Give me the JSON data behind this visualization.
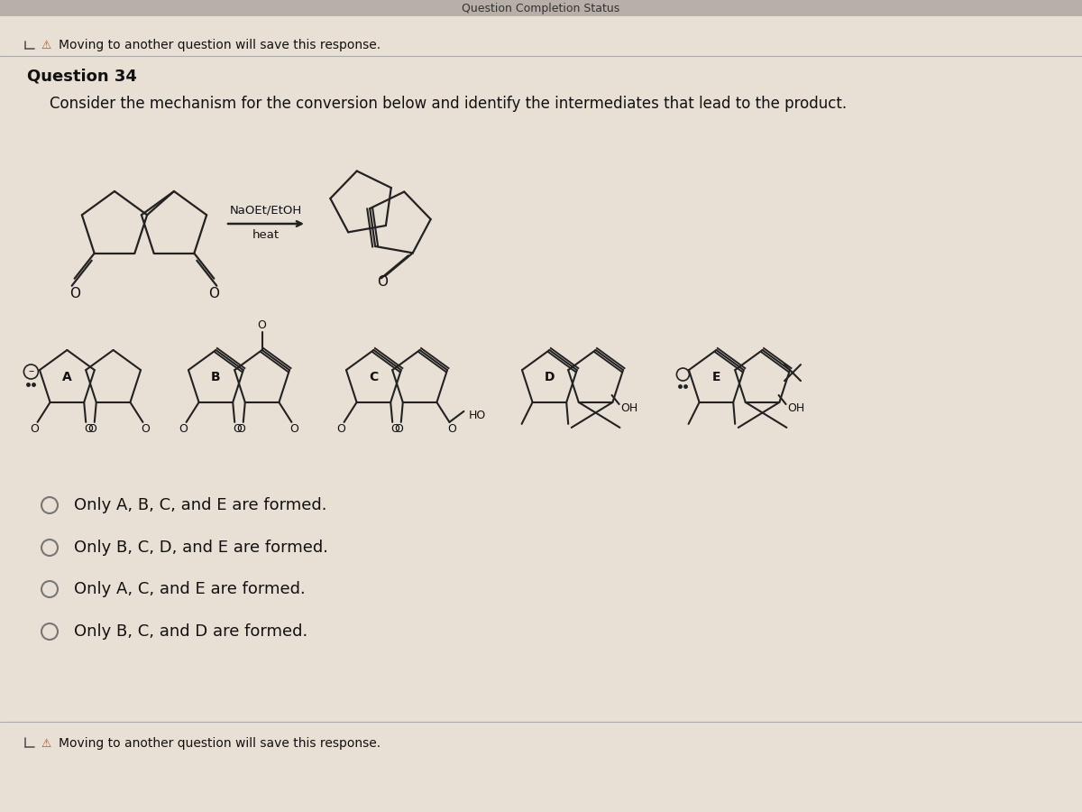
{
  "bg_top": "#c8c0b8",
  "bg_main": "#e8e0d4",
  "header_text": "Question Completion Status",
  "top_notice": "Moving to another question will save this response.",
  "question_number": "Question 34",
  "question_text": "Consider the mechanism for the conversion below and identify the intermediates that lead to the product.",
  "reagent1": "NaOEt/EtOH",
  "reagent2": "heat",
  "answer_choices": [
    "Only A, B, C, and E are formed.",
    "Only B, C, D, and E are formed.",
    "Only A, C, and E are formed.",
    "Only B, C, and D are formed."
  ],
  "bottom_notice": "Moving to another question will save this response.",
  "text_color": "#111111",
  "line_color": "#222222"
}
